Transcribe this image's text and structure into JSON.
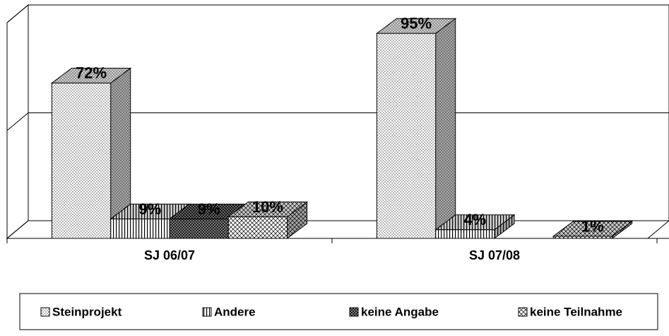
{
  "chart_data": {
    "type": "bar3d",
    "categories": [
      "SJ 06/07",
      "SJ 07/08"
    ],
    "series": [
      {
        "name": "Steinprojekt",
        "color": "#ffffff",
        "values": [
          72,
          95
        ],
        "value_labels": [
          "72%",
          "95%"
        ]
      },
      {
        "name": "Andere",
        "color": "#ffffff",
        "values": [
          9,
          4
        ],
        "value_labels": [
          "9%",
          "4%"
        ]
      },
      {
        "name": "keine Angabe",
        "color": "#9a9a9a",
        "values": [
          9,
          null
        ],
        "value_labels": [
          "9%",
          null
        ]
      },
      {
        "name": "keine Teilnahme",
        "color": "#ffffff",
        "values": [
          10,
          1
        ],
        "value_labels": [
          "10%",
          "1%"
        ]
      }
    ],
    "ylim": [
      0,
      100
    ],
    "yticks": [
      0,
      50,
      100
    ],
    "grid": true,
    "legend": "bottom"
  }
}
